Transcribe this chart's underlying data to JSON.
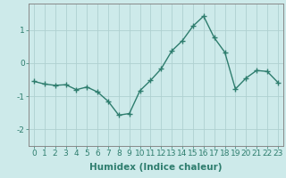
{
  "x": [
    0,
    1,
    2,
    3,
    4,
    5,
    6,
    7,
    8,
    9,
    10,
    11,
    12,
    13,
    14,
    15,
    16,
    17,
    18,
    19,
    20,
    21,
    22,
    23
  ],
  "y": [
    -0.55,
    -0.63,
    -0.67,
    -0.65,
    -0.8,
    -0.72,
    -0.87,
    -1.15,
    -1.57,
    -1.52,
    -0.83,
    -0.52,
    -0.17,
    0.37,
    0.68,
    1.12,
    1.42,
    0.77,
    0.33,
    -0.78,
    -0.45,
    -0.22,
    -0.25,
    -0.58
  ],
  "xlabel": "Humidex (Indice chaleur)",
  "xlim": [
    -0.5,
    23.5
  ],
  "ylim": [
    -2.5,
    1.8
  ],
  "yticks": [
    -2,
    -1,
    0,
    1
  ],
  "xticks": [
    0,
    1,
    2,
    3,
    4,
    5,
    6,
    7,
    8,
    9,
    10,
    11,
    12,
    13,
    14,
    15,
    16,
    17,
    18,
    19,
    20,
    21,
    22,
    23
  ],
  "line_color": "#2e7d6e",
  "marker": "+",
  "bg_color": "#cdeaea",
  "grid_color": "#afd0d0",
  "axis_color": "#888888",
  "xlabel_fontsize": 7.5,
  "tick_fontsize": 6.5,
  "linewidth": 1.0,
  "markersize": 4,
  "markeredgewidth": 1.0
}
